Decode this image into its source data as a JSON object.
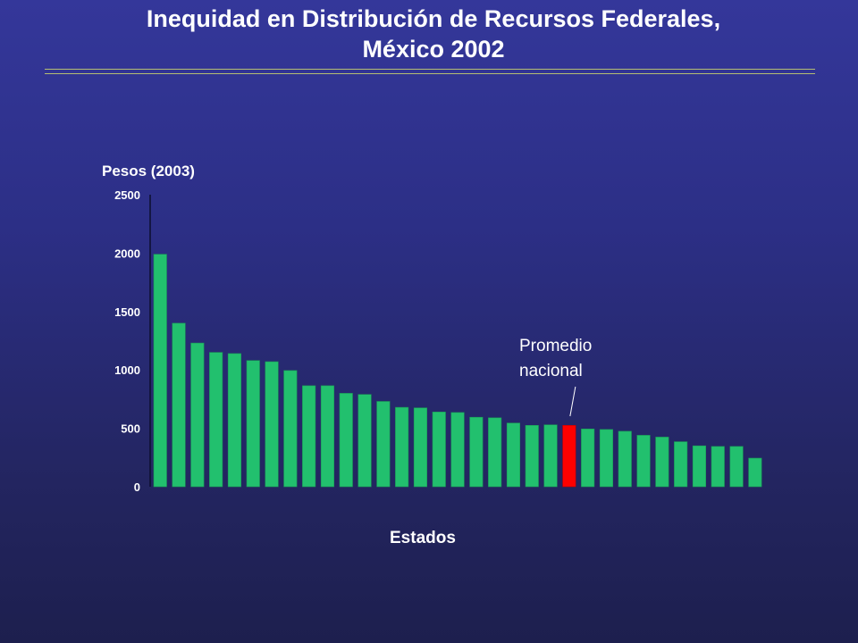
{
  "title_line1": "Inequidad en Distribución de Recursos Federales,",
  "title_line2": "México 2002",
  "colors": {
    "bar": "#22c06e",
    "highlight": "#ff0000",
    "rule": "#b5be72"
  },
  "chart_data": {
    "type": "bar",
    "title": "Inequidad en Distribución de Recursos Federales, México 2002",
    "xlabel": "Estados",
    "ylabel": "Pesos (2003)",
    "ylim": [
      0,
      2500
    ],
    "yticks": [
      0,
      500,
      1000,
      1500,
      2000,
      2500
    ],
    "grid": false,
    "values": [
      1990,
      1400,
      1230,
      1150,
      1140,
      1080,
      1070,
      995,
      865,
      865,
      800,
      790,
      730,
      680,
      675,
      640,
      635,
      595,
      590,
      545,
      525,
      530,
      525,
      495,
      490,
      475,
      440,
      425,
      385,
      350,
      345,
      345,
      245
    ],
    "highlight_index": 22,
    "annotation": "Promedio nacional"
  }
}
